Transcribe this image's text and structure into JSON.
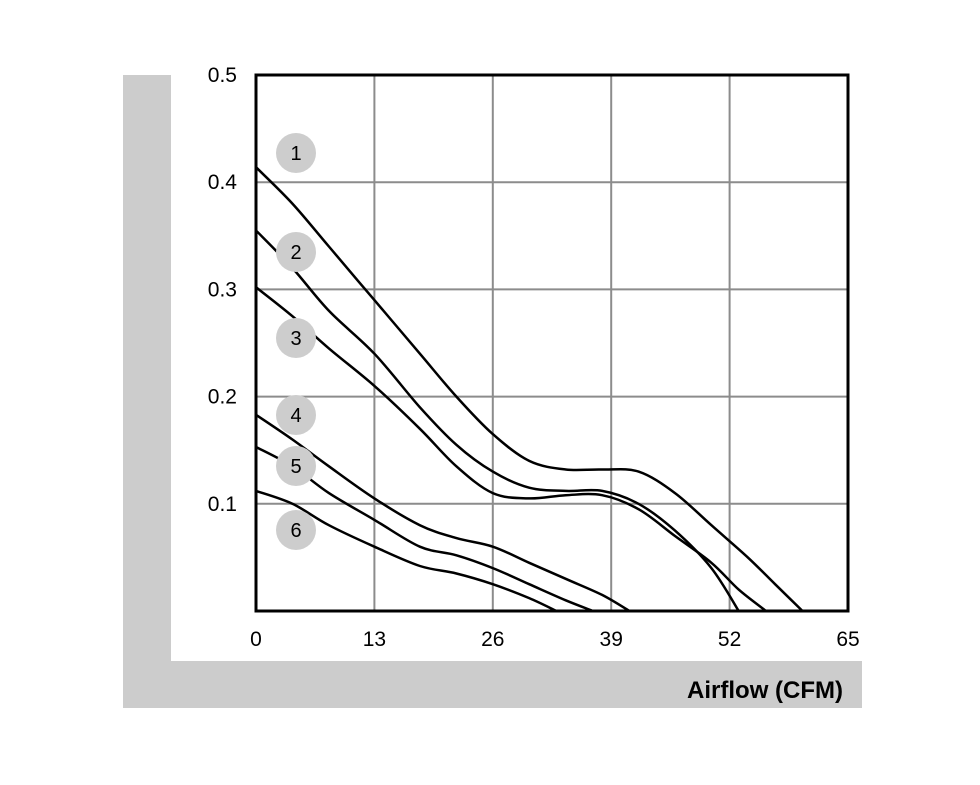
{
  "chart_data": {
    "type": "line",
    "title": "",
    "xlabel": "Airflow (CFM)",
    "ylabel": "",
    "xlim": [
      0,
      65
    ],
    "ylim": [
      0,
      0.5
    ],
    "x_ticks": [
      "0",
      "13",
      "26",
      "39",
      "52",
      "65"
    ],
    "y_ticks": [
      "0.1",
      "0.2",
      "0.3",
      "0.4",
      "0.5"
    ],
    "grid": true,
    "colors": {
      "line": "#000000",
      "grid": "#8c8c8c",
      "frame": "#000000",
      "band": "#cccccc",
      "badge": "#cdcdcd"
    },
    "series": [
      {
        "label": "1",
        "x": [
          0,
          4,
          8,
          13,
          18,
          22,
          26,
          30,
          34,
          38,
          42,
          46,
          50,
          54,
          57,
          60
        ],
        "y": [
          0.414,
          0.38,
          0.34,
          0.29,
          0.24,
          0.2,
          0.165,
          0.14,
          0.132,
          0.132,
          0.13,
          0.11,
          0.08,
          0.05,
          0.025,
          0.0
        ]
      },
      {
        "label": "2",
        "x": [
          0,
          4,
          8,
          13,
          18,
          22,
          26,
          30,
          34,
          38,
          42,
          46,
          50,
          53
        ],
        "y": [
          0.355,
          0.32,
          0.28,
          0.24,
          0.19,
          0.155,
          0.13,
          0.115,
          0.112,
          0.112,
          0.1,
          0.075,
          0.04,
          0.0
        ]
      },
      {
        "label": "3",
        "x": [
          0,
          4,
          8,
          13,
          18,
          22,
          26,
          30,
          34,
          38,
          42,
          46,
          50,
          53,
          56
        ],
        "y": [
          0.302,
          0.275,
          0.245,
          0.21,
          0.17,
          0.135,
          0.11,
          0.105,
          0.108,
          0.108,
          0.095,
          0.07,
          0.045,
          0.02,
          0.0
        ]
      },
      {
        "label": "4",
        "x": [
          0,
          4,
          8,
          13,
          18,
          22,
          26,
          30,
          34,
          38,
          41
        ],
        "y": [
          0.183,
          0.16,
          0.135,
          0.105,
          0.08,
          0.068,
          0.06,
          0.045,
          0.03,
          0.015,
          0.0
        ]
      },
      {
        "label": "5",
        "x": [
          0,
          4,
          8,
          13,
          18,
          22,
          26,
          30,
          34,
          37
        ],
        "y": [
          0.153,
          0.135,
          0.11,
          0.085,
          0.06,
          0.052,
          0.04,
          0.025,
          0.01,
          0.0
        ]
      },
      {
        "label": "6",
        "x": [
          0,
          4,
          8,
          13,
          18,
          22,
          26,
          30,
          33
        ],
        "y": [
          0.112,
          0.1,
          0.08,
          0.06,
          0.042,
          0.035,
          0.025,
          0.012,
          0.0
        ]
      }
    ]
  }
}
